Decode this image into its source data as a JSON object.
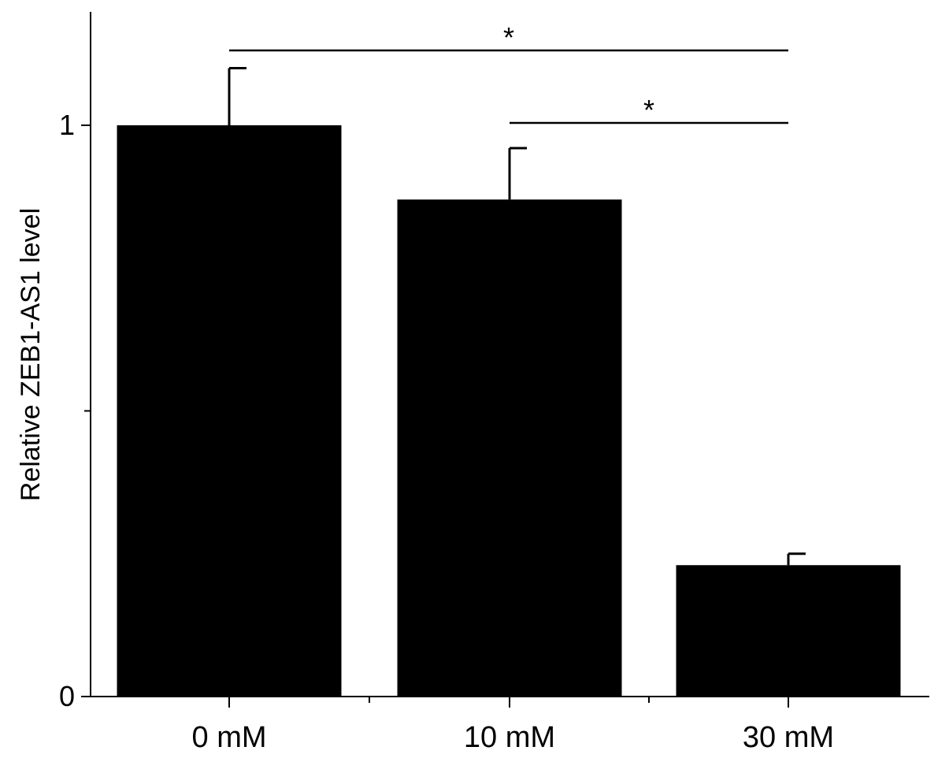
{
  "chart_data": {
    "type": "bar",
    "categories": [
      "0 mM",
      "10 mM",
      "30 mM"
    ],
    "values": [
      1.0,
      0.87,
      0.23
    ],
    "errors": [
      0.1,
      0.09,
      0.02
    ],
    "ylabel": "Relative ZEB1-AS1 level",
    "xlabel": "",
    "ylim": [
      0,
      1.2
    ],
    "yticks_labeled": [
      {
        "value": 0,
        "label": "0"
      },
      {
        "value": 1,
        "label": "1"
      }
    ],
    "yticks_minor": [
      0.5
    ],
    "bar_color": "#000000",
    "grid": false,
    "significance": [
      {
        "from": "0 mM",
        "to": "30 mM",
        "label": "*"
      },
      {
        "from": "10 mM",
        "to": "30 mM",
        "label": "*"
      }
    ]
  }
}
